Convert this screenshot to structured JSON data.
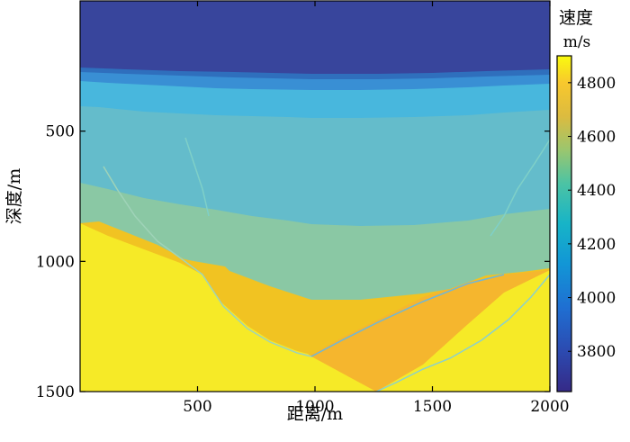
{
  "chart_data": {
    "type": "heatmap",
    "title": "",
    "xlabel": "距离/m",
    "ylabel": "深度/m",
    "xlim": [
      0,
      2000
    ],
    "ylim": [
      0,
      1500
    ],
    "y_reversed": true,
    "xticks": [
      500,
      1000,
      1500,
      2000
    ],
    "yticks": [
      500,
      1000,
      1500
    ],
    "colorbar": {
      "title": "速度",
      "unit": "m/s",
      "range": [
        3650,
        4900
      ],
      "ticks": [
        3800,
        4000,
        4200,
        4400,
        4600,
        4800
      ],
      "colormap": "parula"
    },
    "grid": false,
    "layers": [
      {
        "velocity": 3700,
        "color": "#38459c",
        "top_depth": [
          0,
          0,
          0,
          0,
          0
        ],
        "bottom_depth": [
          260,
          240,
          220,
          230,
          260
        ],
        "x": [
          0,
          500,
          1000,
          1500,
          2000
        ]
      },
      {
        "velocity": 3900,
        "color": "#2f6fbd",
        "bottom_depth": [
          300,
          280,
          255,
          265,
          300
        ],
        "x": [
          0,
          500,
          1000,
          1500,
          2000
        ]
      },
      {
        "velocity": 4050,
        "color": "#398fd4",
        "bottom_depth": [
          330,
          300,
          280,
          290,
          330
        ],
        "x": [
          0,
          500,
          1000,
          1500,
          2000
        ]
      },
      {
        "velocity": 4200,
        "color": "#48b7dd",
        "bottom_depth": [
          590,
          610,
          650,
          630,
          600
        ],
        "x": [
          0,
          500,
          1000,
          1500,
          2000
        ]
      },
      {
        "velocity": 4350,
        "color": "#64bccb",
        "bottom_depth": [
          760,
          790,
          830,
          820,
          780
        ],
        "x": [
          0,
          500,
          1000,
          1500,
          2000
        ]
      },
      {
        "velocity": 4450,
        "color": "#8ac8a4",
        "bottom_depth": [
          810,
          920,
          1000,
          1060,
          980
        ],
        "x": [
          0,
          500,
          1000,
          1500,
          2000
        ]
      },
      {
        "velocity": 4700,
        "color": "#f1c322",
        "bottom_depth": [
          850,
          1040,
          1330,
          1090,
          1020
        ],
        "x": [
          0,
          500,
          1000,
          1500,
          2000
        ]
      },
      {
        "velocity": 4750,
        "color": "#f5b62e",
        "description_basin_floor_depth": 1500,
        "x": [
          0,
          500,
          1000,
          1500,
          2000
        ]
      },
      {
        "velocity": 4900,
        "color": "#f6ea27",
        "bottom_depth": [
          1500,
          1500,
          1500,
          1500,
          1500
        ],
        "x": [
          0,
          500,
          1000,
          1500,
          2000
        ]
      }
    ]
  }
}
